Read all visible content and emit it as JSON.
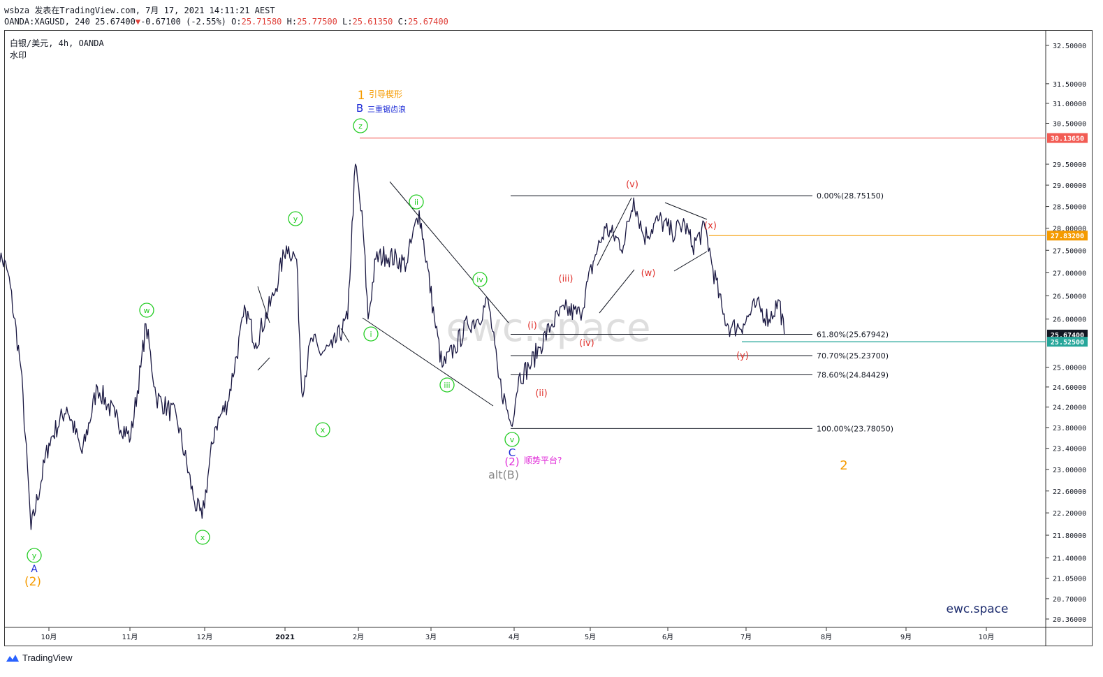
{
  "header": {
    "author_line": "wsbza 发表在TradingView.com, 7月 17, 2021 14:11:21 AEST",
    "symbol_prefix": "OANDA:XAGUSD, 240 25.67400",
    "change_arrow": "▼",
    "change": "-0.67100 (-2.55%)",
    "o_label": "O:",
    "o_val": "25.71580",
    "h_label": "H:",
    "h_val": "25.77500",
    "l_label": "L:",
    "l_val": "25.61350",
    "c_label": "C:",
    "c_val": "25.67400"
  },
  "chart_title": "白银/美元, 4h, OANDA",
  "chart_subtitle": "水印",
  "watermark": "ewc.space",
  "brand_tag": "ewc.space",
  "footer": {
    "brand": "TradingView"
  },
  "colors": {
    "price": "#1a1842",
    "green": "#22cc22",
    "red": "#e0312c",
    "orange": "#f59b00",
    "blue": "#1c2bd6",
    "magenta": "#e02ad8",
    "gray": "#888888",
    "resist": "#f25c54",
    "orange_line": "#f59b00",
    "teal": "#26a69a",
    "dark_badge": "#131722"
  },
  "chart_data": {
    "type": "line",
    "title": "白银/美元, 4h, OANDA",
    "ylim": [
      20.2,
      32.8
    ],
    "log_scale": true,
    "grid": false,
    "x_ticks": [
      "10月",
      "11月",
      "12月",
      "2021",
      "2月",
      "3月",
      "4月",
      "5月",
      "6月",
      "7月",
      "8月",
      "9月",
      "10月"
    ],
    "y_ticks": [
      "32.50000",
      "31.50000",
      "31.00000",
      "30.50000",
      "29.50000",
      "29.00000",
      "28.50000",
      "28.00000",
      "27.50000",
      "27.00000",
      "26.50000",
      "26.00000",
      "25.00000",
      "24.60000",
      "24.20000",
      "23.80000",
      "23.40000",
      "23.00000",
      "22.60000",
      "22.20000",
      "21.80000",
      "21.40000",
      "21.05000",
      "20.70000",
      "20.36000"
    ],
    "price_badges": [
      {
        "label": "30.13650",
        "kind": "resist"
      },
      {
        "label": "27.83200",
        "kind": "orange"
      },
      {
        "label": "25.67400",
        "kind": "dark"
      },
      {
        "label": "25.52500",
        "kind": "teal"
      }
    ],
    "fib_levels": [
      {
        "label": "0.00%(28.75150)",
        "value": 28.7515
      },
      {
        "label": "61.80%(25.67942)",
        "value": 25.67942
      },
      {
        "label": "70.70%(25.23700)",
        "value": 25.237
      },
      {
        "label": "78.60%(24.84429)",
        "value": 24.84429
      },
      {
        "label": "100.00%(23.78050)",
        "value": 23.7805
      }
    ],
    "series": [
      {
        "x": [
          "2020-09-10",
          "2020-09-15",
          "2020-09-20",
          "2020-09-24",
          "2020-10-01",
          "2020-10-08",
          "2020-10-14",
          "2020-10-20",
          "2020-10-27",
          "2020-11-02",
          "2020-11-06",
          "2020-11-08",
          "2020-11-12",
          "2020-11-20",
          "2020-11-27",
          "2020-11-30",
          "2020-12-05",
          "2020-12-10",
          "2020-12-17",
          "2020-12-21",
          "2020-12-28",
          "2021-01-02",
          "2021-01-06",
          "2021-01-08",
          "2021-01-12",
          "2021-01-15",
          "2021-01-20",
          "2021-01-26",
          "2021-01-29",
          "2021-02-01",
          "2021-02-03",
          "2021-02-06",
          "2021-02-10",
          "2021-02-18",
          "2021-02-23",
          "2021-03-01",
          "2021-03-04",
          "2021-03-09",
          "2021-03-14",
          "2021-03-18",
          "2021-03-22",
          "2021-03-26",
          "2021-03-31",
          "2021-04-03",
          "2021-04-07",
          "2021-04-11",
          "2021-04-16",
          "2021-04-21",
          "2021-04-27",
          "2021-05-03",
          "2021-05-07",
          "2021-05-14",
          "2021-05-18",
          "2021-05-22",
          "2021-05-28",
          "2021-06-02",
          "2021-06-07",
          "2021-06-10",
          "2021-06-15",
          "2021-06-18",
          "2021-06-22",
          "2021-06-25",
          "2021-06-30",
          "2021-07-05",
          "2021-07-10",
          "2021-07-14",
          "2021-07-16"
        ],
        "values": [
          27.6,
          27.0,
          25.0,
          21.9,
          23.5,
          24.2,
          23.3,
          24.6,
          24.0,
          23.6,
          25.0,
          25.9,
          24.4,
          24.0,
          22.4,
          22.1,
          23.8,
          24.3,
          26.2,
          25.5,
          26.5,
          27.6,
          27.3,
          24.5,
          25.6,
          25.3,
          25.4,
          26.0,
          29.5,
          28.0,
          26.0,
          27.3,
          27.4,
          27.2,
          28.4,
          26.0,
          25.0,
          25.4,
          25.9,
          26.0,
          26.4,
          24.8,
          23.85,
          24.8,
          25.0,
          25.4,
          25.9,
          26.2,
          26.1,
          27.4,
          28.0,
          27.6,
          28.7,
          27.8,
          28.2,
          27.9,
          28.1,
          27.6,
          28.0,
          27.1,
          26.1,
          25.8,
          25.9,
          26.3,
          26.0,
          26.4,
          25.67
        ]
      }
    ]
  },
  "annotations": {
    "y_a": "y",
    "A": "A",
    "two_a": "(2)",
    "w": "w",
    "x1": "x",
    "x2": "x",
    "y1": "y",
    "one": "1",
    "lead_diag": "引导楔形",
    "B": "B",
    "triple_zz": "三重锯齿浪",
    "z": "z",
    "i_g": "i",
    "ii_g": "ii",
    "iii_g": "iii",
    "iv_g": "iv",
    "v_g": "v",
    "C": "C",
    "two_b": "(2)",
    "flat": "顺势平台?",
    "altB": "alt(B)",
    "i_r": "(i)",
    "ii_r": "(ii)",
    "iii_r": "(iii)",
    "iv_r": "(iv)",
    "v_r": "(v)",
    "w_r": "(w)",
    "x_r": "(x)",
    "y_r": "(y)",
    "two_c": "2"
  }
}
